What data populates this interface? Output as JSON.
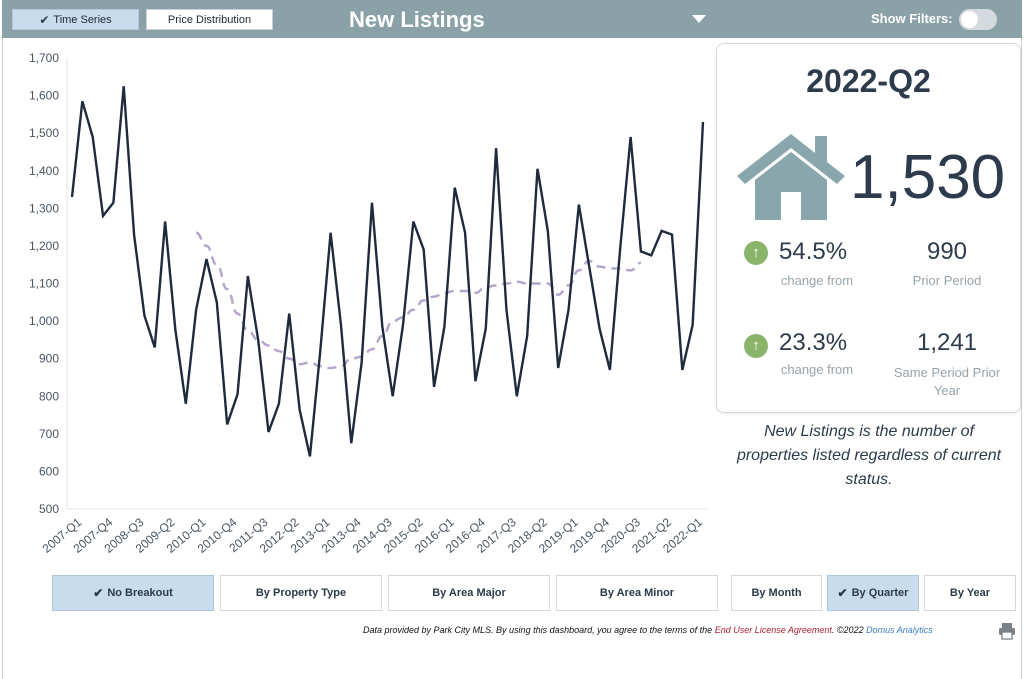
{
  "header": {
    "time_series_label": "Time Series",
    "price_distribution_label": "Price Distribution",
    "title": "New Listings",
    "show_filters_label": "Show Filters:"
  },
  "kpi": {
    "period": "2022-Q2",
    "value": "1,530",
    "change1_pct": "54.5%",
    "change1_sub": "change from",
    "prior_value": "990",
    "prior_label": "Prior Period",
    "change2_pct": "23.3%",
    "change2_sub": "change from",
    "same_period_value": "1,241",
    "same_period_label_1": "Same Period Prior",
    "same_period_label_2": "Year"
  },
  "description": {
    "line1": "New Listings is the number of",
    "line2": "properties listed regardless of current",
    "line3": "status."
  },
  "buttons": {
    "no_breakout": "No Breakout",
    "by_property_type": "By Property Type",
    "by_area_major": "By Area Major",
    "by_area_minor": "By Area Minor",
    "by_month": "By Month",
    "by_quarter": "By Quarter",
    "by_year": "By Year"
  },
  "footer": {
    "text1": "Data provided by Park City MLS.  By using this dashboard, you agree to the terms of the ",
    "link1": "End User License Agreement",
    "text2": ".  ©2022 ",
    "link2": "Domus Analytics"
  },
  "colors": {
    "header_bg": "#8aa1a8",
    "line": "#1f2a3c",
    "trend": "#b6a6cc",
    "house": "#8aa6ad",
    "up_arrow": "#8ab46a",
    "active_button": "#c9dced"
  },
  "icons": {
    "check": "check-icon",
    "dropdown": "caret-down-icon",
    "house": "house-icon",
    "up_arrow": "arrow-up-circle-icon",
    "print": "printer-icon"
  },
  "chart_data": {
    "type": "line",
    "ylim": [
      500,
      1700
    ],
    "yticks": [
      500,
      600,
      700,
      800,
      900,
      1000,
      1100,
      1200,
      1300,
      1400,
      1500,
      1600,
      1700
    ],
    "x_tick_labels": [
      "2007-Q1",
      "2007-Q4",
      "2008-Q3",
      "2009-Q2",
      "2010-Q1",
      "2010-Q4",
      "2011-Q3",
      "2012-Q2",
      "2013-Q1",
      "2013-Q4",
      "2014-Q3",
      "2015-Q2",
      "2016-Q1",
      "2016-Q4",
      "2017-Q3",
      "2018-Q2",
      "2019-Q1",
      "2019-Q4",
      "2020-Q3",
      "2021-Q2",
      "2022-Q1"
    ],
    "quarters": [
      "2007-Q1",
      "2007-Q2",
      "2007-Q3",
      "2007-Q4",
      "2008-Q1",
      "2008-Q2",
      "2008-Q3",
      "2008-Q4",
      "2009-Q1",
      "2009-Q2",
      "2009-Q3",
      "2009-Q4",
      "2010-Q1",
      "2010-Q2",
      "2010-Q3",
      "2010-Q4",
      "2011-Q1",
      "2011-Q2",
      "2011-Q3",
      "2011-Q4",
      "2012-Q1",
      "2012-Q2",
      "2012-Q3",
      "2012-Q4",
      "2013-Q1",
      "2013-Q2",
      "2013-Q3",
      "2013-Q4",
      "2014-Q1",
      "2014-Q2",
      "2014-Q3",
      "2014-Q4",
      "2015-Q1",
      "2015-Q2",
      "2015-Q3",
      "2015-Q4",
      "2016-Q1",
      "2016-Q2",
      "2016-Q3",
      "2016-Q4",
      "2017-Q1",
      "2017-Q2",
      "2017-Q3",
      "2017-Q4",
      "2018-Q1",
      "2018-Q2",
      "2018-Q3",
      "2018-Q4",
      "2019-Q1",
      "2019-Q2",
      "2019-Q3",
      "2019-Q4",
      "2020-Q1",
      "2020-Q2",
      "2020-Q3",
      "2020-Q4",
      "2021-Q1",
      "2021-Q2",
      "2021-Q3",
      "2021-Q4",
      "2022-Q1",
      "2022-Q2"
    ],
    "series": [
      {
        "values": [
          1330,
          1585,
          1490,
          1280,
          1315,
          1625,
          1230,
          1015,
          930,
          1265,
          975,
          780,
          1030,
          1165,
          1050,
          725,
          805,
          1120,
          950,
          705,
          780,
          1020,
          765,
          640,
          920,
          1235,
          990,
          675,
          890,
          1315,
          985,
          800,
          990,
          1265,
          1190,
          825,
          985,
          1355,
          1235,
          840,
          980,
          1460,
          1030,
          800,
          960,
          1405,
          1240,
          875,
          1030,
          1310,
          1145,
          980,
          870,
          1195,
          1490,
          1185,
          1175,
          1240,
          1230,
          870,
          990,
          1530
        ]
      },
      {
        "style": "dashed",
        "start_index": 12,
        "values": [
          1235,
          1200,
          1150,
          1085,
          1020,
          975,
          950,
          935,
          920,
          900,
          885,
          890,
          880,
          875,
          880,
          900,
          905,
          925,
          960,
          1000,
          1010,
          1030,
          1055,
          1065,
          1075,
          1080,
          1080,
          1075,
          1090,
          1095,
          1100,
          1105,
          1100,
          1100,
          1100,
          1070,
          1095,
          1135,
          1160,
          1145,
          1140,
          1140,
          1135,
          1155
        ]
      }
    ]
  }
}
